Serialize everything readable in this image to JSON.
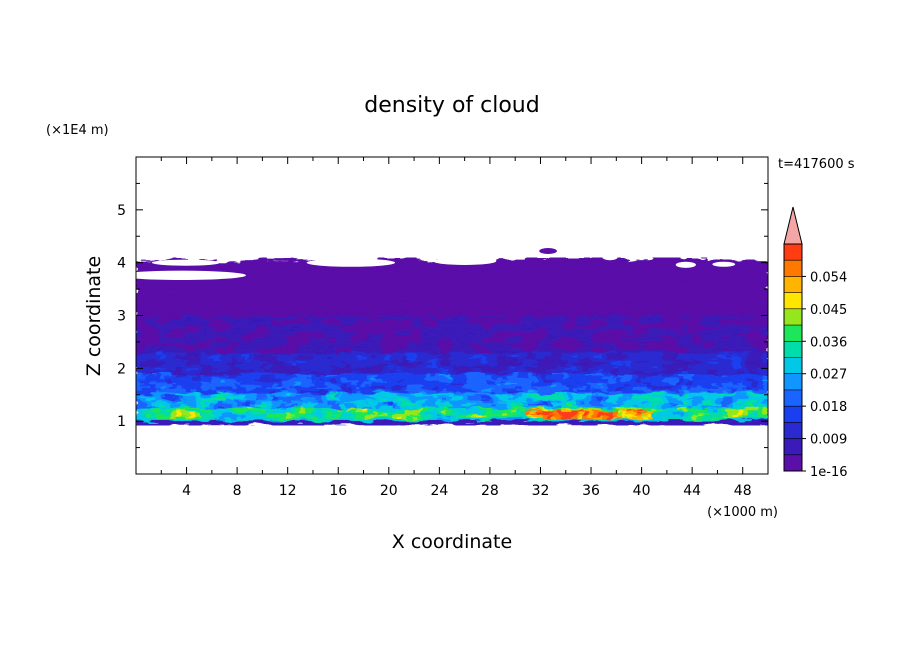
{
  "chart_data": {
    "type": "heatmap",
    "title": "density of cloud",
    "time_label": "t=417600 s",
    "xlabel": "X coordinate",
    "ylabel": "Z coordinate",
    "x_unit_label": "(×1000 m)",
    "y_unit_label": "(×1E4 m)",
    "xlim": [
      0,
      50
    ],
    "ylim": [
      0,
      6
    ],
    "x_ticks": [
      "4",
      "8",
      "12",
      "16",
      "20",
      "24",
      "28",
      "32",
      "36",
      "40",
      "44",
      "48"
    ],
    "y_ticks": [
      "1",
      "2",
      "3",
      "4",
      "5"
    ],
    "colorbar": {
      "labels": [
        "1e-16",
        "0.009",
        "0.018",
        "0.027",
        "0.036",
        "0.045",
        "0.054"
      ],
      "levels": [
        0,
        0.0045,
        0.009,
        0.0135,
        0.018,
        0.0225,
        0.027,
        0.0315,
        0.036,
        0.0405,
        0.045,
        0.0495,
        0.054,
        0.0585,
        0.063
      ],
      "colors": [
        "#5a0fa8",
        "#3a1ab8",
        "#2a2ad0",
        "#1a3ff0",
        "#1a64ff",
        "#0f96ff",
        "#00c8e6",
        "#00dcaa",
        "#1ee65a",
        "#96e61e",
        "#ffe600",
        "#ffb400",
        "#ff7800",
        "#ff3c14"
      ],
      "extend_color": "#f4a6a6"
    },
    "layers": [
      {
        "z_range": [
          3.0,
          4.1
        ],
        "value_range": [
          0,
          0.0045
        ],
        "desc_color": "#5a0fa8"
      },
      {
        "z_range": [
          2.4,
          3.0
        ],
        "value_range": [
          0.0045,
          0.009
        ]
      },
      {
        "z_range": [
          1.8,
          2.4
        ],
        "value_range": [
          0.009,
          0.018
        ]
      },
      {
        "z_range": [
          1.3,
          1.8
        ],
        "value_range": [
          0.018,
          0.031
        ]
      },
      {
        "z_range": [
          1.0,
          1.3
        ],
        "value_range": [
          0.031,
          0.063
        ]
      },
      {
        "z_range": [
          0.9,
          1.0
        ],
        "value_range": [
          0,
          0.009
        ]
      }
    ]
  }
}
